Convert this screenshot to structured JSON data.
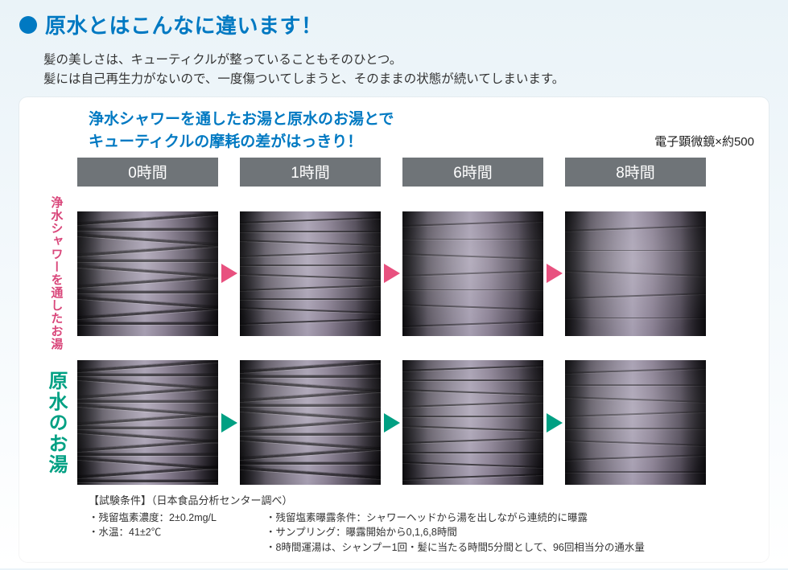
{
  "title": "原水とはこんなに違います！",
  "intro_line1": "髪の美しさは、キューティクルが整っていることもそのひとつ。",
  "intro_line2": "髪には自己再生力がないので、一度傷ついてしまうと、そのままの状態が続いてしまいます。",
  "sub_head_line1": "浄水シャワーを通したお湯と原水のお湯とで",
  "sub_head_line2": "キューティクルの摩耗の差がはっきり！",
  "scope_note": "電子顕微鏡×約500",
  "time_labels": [
    "0時間",
    "1時間",
    "6時間",
    "8時間"
  ],
  "rows": [
    {
      "key": "filtered",
      "label": "浄水シャワーを\n通したお湯",
      "label_color": "#d9467a",
      "arrow_color": "#e8517f"
    },
    {
      "key": "raw",
      "label": "原水のお湯",
      "label_color": "#00a083",
      "arrow_color": "#00a083"
    }
  ],
  "colors": {
    "brand_blue": "#0079c2",
    "header_gray": "#6f7478",
    "pink": "#e8517f",
    "green": "#00a083",
    "panel_bg": "#ffffff"
  },
  "conditions": {
    "title": "【試験条件】（日本食品分析センター調べ）",
    "left": [
      "・残留塩素濃度：2±0.2mg/L",
      "・水温：41±2℃"
    ],
    "right": [
      "・残留塩素曝露条件：シャワーヘッドから湯を出しながら連続的に曝露",
      "・サンプリング：曝露開始から0,1,6,8時間",
      "・8時間運湯は、シャンプー1回・髪に当たる時間5分間として、96回相当分の通水量"
    ]
  },
  "cuticle_layout": {
    "filtered": [
      [
        8,
        21,
        34,
        47,
        60,
        73,
        86,
        99,
        112,
        125,
        138
      ],
      [
        10,
        24,
        38,
        52,
        66,
        80,
        94,
        108,
        122,
        136
      ],
      [
        14,
        34,
        55,
        76,
        97,
        118,
        139
      ],
      [
        20,
        48,
        76,
        104,
        132
      ]
    ],
    "raw": [
      [
        6,
        17,
        28,
        39,
        50,
        61,
        72,
        83,
        94,
        105,
        116,
        127,
        138,
        149
      ],
      [
        7,
        19,
        31,
        43,
        55,
        67,
        79,
        91,
        103,
        115,
        127,
        139
      ],
      [
        9,
        24,
        39,
        54,
        69,
        84,
        99,
        114,
        129,
        144
      ],
      [
        12,
        30,
        48,
        66,
        84,
        102,
        120,
        138
      ]
    ]
  }
}
